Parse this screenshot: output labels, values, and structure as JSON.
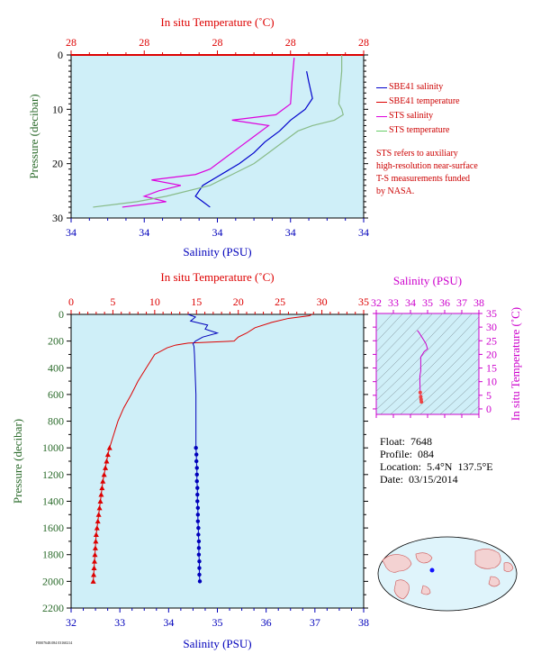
{
  "colors": {
    "bg": "#cfeff8",
    "red": "#dd0000",
    "blue": "#0000bb",
    "magenta": "#cc00cc",
    "green": "#66cc66",
    "axis_green": "#2a6a2a"
  },
  "legend": [
    {
      "label": "SBE41 salinity",
      "color": "#0000cc"
    },
    {
      "label": "SBE41 temperature",
      "color": "#dd0000"
    },
    {
      "label": "STS salinity",
      "color": "#dd00dd"
    },
    {
      "label": "STS temperature",
      "color": "#66cc66"
    }
  ],
  "note": [
    "STS refers to auxiliary",
    "high-resolution near-surface",
    "T-S measurements funded",
    "by NASA."
  ],
  "info": {
    "float": "Float:  7648",
    "profile": "Profile:  084",
    "location": "Location:  5.4°N  137.5°E",
    "date": "Date:  03/15/2014"
  },
  "footer_id": "F0007648.084 03160214",
  "chart_data": [
    {
      "type": "line",
      "name": "near-surface",
      "xlabel_top": "In situ Temperature (˚C)",
      "xlabel_bottom": "Salinity (PSU)",
      "ylabel": "Pressure (decibar)",
      "top_ticks": [
        "28",
        "28",
        "28",
        "28",
        "28"
      ],
      "bottom_ticks": [
        "34",
        "34",
        "34",
        "34",
        "34"
      ],
      "y_ticks": [
        "0",
        "10",
        "20",
        "30"
      ],
      "ylim": [
        0,
        30
      ],
      "xlim": [
        0,
        4
      ],
      "series": [
        {
          "key": "sbe41_salinity",
          "p": [
            3,
            5,
            8,
            10,
            12,
            14,
            16,
            18,
            20,
            22,
            24,
            26,
            27,
            28
          ],
          "x": [
            3.22,
            3.25,
            3.3,
            3.2,
            3.0,
            2.85,
            2.65,
            2.5,
            2.3,
            2.05,
            1.8,
            1.7,
            1.8,
            1.9
          ]
        },
        {
          "key": "sbe41_temperature",
          "p": [
            0,
            0
          ],
          "x": [
            0,
            4
          ]
        },
        {
          "key": "sts_salinity",
          "p": [
            0.5,
            5,
            9,
            11,
            12,
            13,
            15,
            17,
            19,
            21,
            22,
            23,
            24,
            25,
            26,
            27,
            28
          ],
          "x": [
            3.05,
            3.02,
            3.0,
            2.8,
            2.2,
            2.7,
            2.5,
            2.3,
            2.1,
            1.9,
            1.7,
            1.1,
            1.5,
            1.2,
            1.0,
            1.3,
            0.7
          ]
        },
        {
          "key": "sts_temperature",
          "p": [
            0,
            3,
            6,
            9,
            10,
            11,
            12,
            13,
            14,
            16,
            18,
            20,
            22,
            24,
            26,
            27,
            28
          ],
          "x": [
            3.7,
            3.7,
            3.68,
            3.66,
            3.7,
            3.72,
            3.6,
            3.3,
            3.1,
            2.9,
            2.7,
            2.5,
            2.2,
            1.9,
            1.3,
            0.9,
            0.3
          ]
        }
      ]
    },
    {
      "type": "line",
      "name": "full-profile",
      "xlabel_top": "In situ Temperature (˚C)",
      "xlabel_bottom": "Salinity (PSU)",
      "ylabel": "Pressure (decibar)",
      "top_ticks": [
        "0",
        "5",
        "10",
        "15",
        "20",
        "25",
        "30",
        "35"
      ],
      "bottom_ticks": [
        "32",
        "33",
        "34",
        "35",
        "36",
        "37",
        "38"
      ],
      "y_ticks": [
        "0",
        "200",
        "400",
        "600",
        "800",
        "1000",
        "1200",
        "1400",
        "1600",
        "1800",
        "2000",
        "2200"
      ],
      "ylim": [
        0,
        2200
      ],
      "temp_lim": [
        0,
        35
      ],
      "sal_lim": [
        32,
        38
      ],
      "temperature": {
        "p": [
          0,
          10,
          30,
          60,
          100,
          140,
          170,
          200,
          215,
          230,
          250,
          300,
          400,
          500,
          600,
          700,
          800,
          900,
          1000,
          1050,
          1100,
          1150,
          1200,
          1250,
          1300,
          1350,
          1400,
          1450,
          1500,
          1550,
          1600,
          1650,
          1700,
          1750,
          1800,
          1850,
          1900,
          1950,
          2000
        ],
        "t": [
          28.8,
          28.5,
          26,
          24,
          22,
          21,
          20,
          19.5,
          14,
          12.5,
          11.5,
          10,
          9,
          8,
          7.2,
          6.3,
          5.6,
          5.1,
          4.6,
          4.4,
          4.25,
          4.1,
          3.95,
          3.8,
          3.7,
          3.6,
          3.5,
          3.4,
          3.3,
          3.2,
          3.1,
          3.0,
          2.95,
          2.9,
          2.85,
          2.8,
          2.75,
          2.7,
          2.65
        ],
        "marker_from": 1000
      },
      "salinity": {
        "p": [
          0,
          20,
          50,
          80,
          110,
          140,
          170,
          200,
          220,
          240,
          300,
          400,
          500,
          600,
          700,
          800,
          900,
          1000,
          1050,
          1100,
          1150,
          1200,
          1250,
          1300,
          1350,
          1400,
          1450,
          1500,
          1550,
          1600,
          1650,
          1700,
          1750,
          1800,
          1850,
          1900,
          1950,
          2000
        ],
        "s": [
          34.4,
          34.55,
          34.45,
          34.8,
          34.75,
          35.0,
          34.7,
          34.55,
          34.5,
          34.52,
          34.53,
          34.54,
          34.55,
          34.56,
          34.56,
          34.56,
          34.56,
          34.56,
          34.57,
          34.57,
          34.58,
          34.58,
          34.58,
          34.59,
          34.59,
          34.59,
          34.6,
          34.6,
          34.6,
          34.61,
          34.61,
          34.62,
          34.62,
          34.62,
          34.63,
          34.63,
          34.63,
          34.64
        ],
        "marker_from": 1000
      }
    },
    {
      "type": "scatter",
      "name": "ts-diagram",
      "xlabel_top": "Salinity (PSU)",
      "ylabel_right": "In situ Temperature (˚C)",
      "x_ticks": [
        "32",
        "33",
        "34",
        "35",
        "36",
        "37",
        "38"
      ],
      "y_ticks": [
        "0",
        "5",
        "10",
        "15",
        "20",
        "25",
        "30",
        "35"
      ],
      "xlim": [
        32,
        38
      ],
      "ylim": [
        -2,
        35
      ],
      "points": {
        "s": [
          34.4,
          34.5,
          34.7,
          34.9,
          35.0,
          34.8,
          34.6,
          34.6,
          34.55,
          34.55,
          34.56,
          34.57,
          34.6,
          34.62,
          34.64
        ],
        "t": [
          28.8,
          28,
          26,
          24,
          22,
          21,
          19,
          14,
          12,
          10,
          8,
          6,
          4.5,
          3.5,
          2.6
        ]
      }
    }
  ]
}
